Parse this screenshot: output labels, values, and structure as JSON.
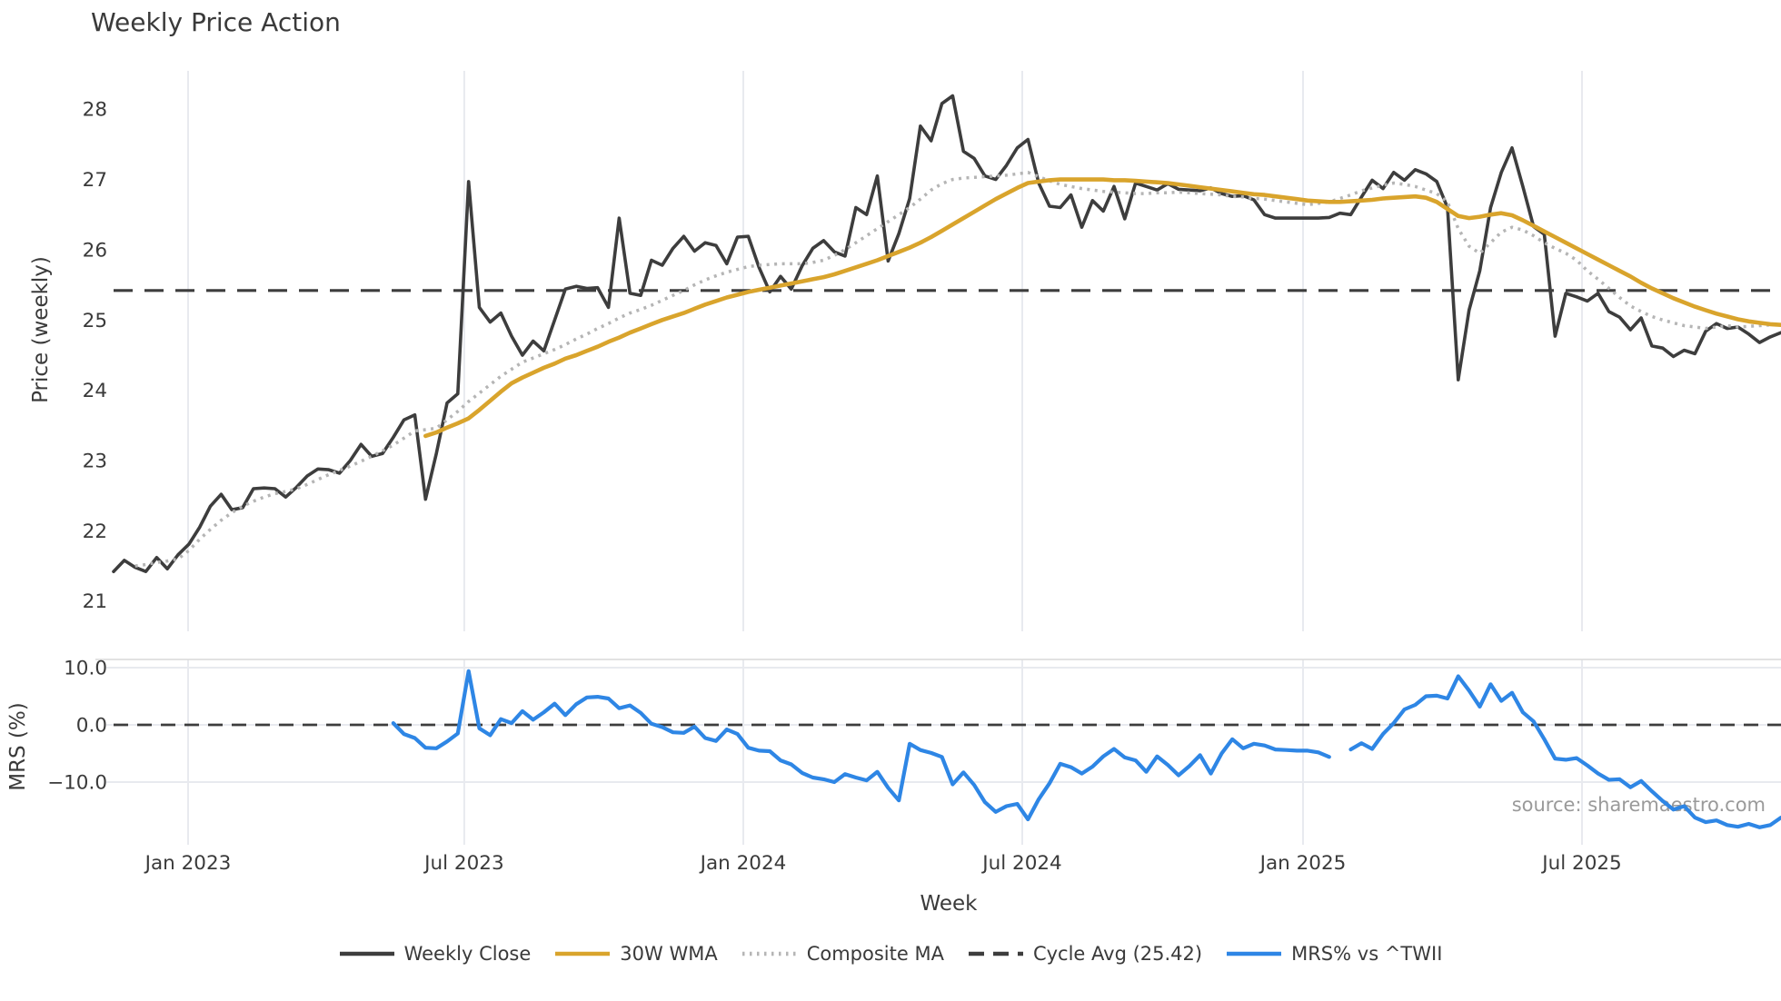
{
  "title": "Weekly Price Action",
  "xlabel": "Week",
  "source_note": "source: sharemaestro.com",
  "colors": {
    "background": "#ffffff",
    "text": "#3a3a3a",
    "grid": "#e8eaef",
    "spine": "#d9d9d9",
    "weekly_close": "#3d3d3d",
    "wma": "#d9a42c",
    "composite": "#b5b5b5",
    "cycle_avg": "#3d3d3d",
    "mrs": "#2e86e5",
    "source": "#9a9a9a"
  },
  "legend": [
    {
      "label": "Weekly Close",
      "style": "solid",
      "color": "#3d3d3d"
    },
    {
      "label": "30W WMA",
      "style": "solid",
      "color": "#d9a42c"
    },
    {
      "label": "Composite MA",
      "style": "dotted",
      "color": "#b5b5b5"
    },
    {
      "label": "Cycle Avg (25.42)",
      "style": "dashed",
      "color": "#3d3d3d"
    },
    {
      "label": "MRS% vs ^TWII",
      "style": "solid",
      "color": "#2e86e5"
    }
  ],
  "chart_data": [
    {
      "type": "line",
      "title": "Weekly Price Action",
      "ylabel": "Price (weekly)",
      "xlabel": "Week",
      "x_unit": "weekly index (Nov 2022 - Nov 2025)",
      "ylim": [
        20.57,
        28.52
      ],
      "grid": "vertical-only",
      "yticks": [
        {
          "v": 28,
          "label": "28"
        },
        {
          "v": 27,
          "label": "27"
        },
        {
          "v": 26,
          "label": "26"
        },
        {
          "v": 25,
          "label": "25"
        },
        {
          "v": 24,
          "label": "24"
        },
        {
          "v": 23,
          "label": "23"
        },
        {
          "v": 22,
          "label": "22"
        },
        {
          "v": 21,
          "label": "21"
        }
      ],
      "xticks": [
        {
          "week": 6.93,
          "label": "Jan 2023"
        },
        {
          "week": 32.6,
          "label": "Jul 2023"
        },
        {
          "week": 58.54,
          "label": "Jan 2024"
        },
        {
          "week": 84.47,
          "label": "Jul 2024"
        },
        {
          "week": 110.57,
          "label": "Jan 2025"
        },
        {
          "week": 136.5,
          "label": "Jul 2025"
        }
      ],
      "cycle_avg": 25.42,
      "series": [
        {
          "name": "Weekly Close",
          "style": "solid",
          "color": "#3d3d3d",
          "values": [
            21.42,
            21.58,
            21.48,
            21.42,
            21.62,
            21.46,
            21.66,
            21.81,
            22.05,
            22.35,
            22.52,
            22.3,
            22.33,
            22.6,
            22.61,
            22.6,
            22.48,
            22.62,
            22.78,
            22.88,
            22.87,
            22.82,
            23.0,
            23.23,
            23.06,
            23.1,
            23.33,
            23.58,
            23.65,
            22.45,
            23.1,
            23.82,
            23.95,
            26.97,
            25.18,
            24.97,
            25.1,
            24.77,
            24.5,
            24.7,
            24.56,
            25.0,
            25.44,
            25.48,
            25.45,
            25.46,
            25.18,
            26.45,
            25.38,
            25.35,
            25.85,
            25.78,
            26.02,
            26.19,
            25.98,
            26.1,
            26.06,
            25.8,
            26.18,
            26.19,
            25.75,
            25.4,
            25.62,
            25.44,
            25.77,
            26.02,
            26.13,
            25.97,
            25.91,
            26.6,
            26.5,
            27.05,
            25.84,
            26.23,
            26.73,
            27.76,
            27.55,
            28.08,
            28.19,
            27.4,
            27.3,
            27.05,
            27.0,
            27.2,
            27.45,
            27.57,
            26.95,
            26.62,
            26.6,
            26.78,
            26.32,
            26.7,
            26.55,
            26.9,
            26.44,
            26.95,
            26.9,
            26.85,
            26.94,
            26.86,
            26.85,
            26.84,
            26.88,
            26.8,
            26.76,
            26.77,
            26.71,
            26.5,
            26.45,
            26.45,
            26.45,
            26.45,
            26.45,
            26.46,
            26.52,
            26.5,
            26.75,
            26.99,
            26.87,
            27.1,
            26.99,
            27.14,
            27.08,
            26.97,
            26.6,
            24.15,
            25.14,
            25.7,
            26.6,
            27.1,
            27.45,
            26.9,
            26.33,
            26.22,
            24.77,
            25.38,
            25.33,
            25.27,
            25.38,
            25.12,
            25.04,
            24.86,
            25.03,
            24.63,
            24.6,
            24.48,
            24.57,
            24.52,
            24.84,
            24.95,
            24.88,
            24.9,
            24.8,
            24.68,
            24.76,
            24.82
          ]
        },
        {
          "name": "30W WMA",
          "style": "solid",
          "color": "#d9a42c",
          "values": [
            null,
            null,
            null,
            null,
            null,
            null,
            null,
            null,
            null,
            null,
            null,
            null,
            null,
            null,
            null,
            null,
            null,
            null,
            null,
            null,
            null,
            null,
            null,
            null,
            null,
            null,
            null,
            null,
            null,
            23.35,
            23.4,
            23.47,
            23.53,
            23.6,
            23.72,
            23.85,
            23.98,
            24.1,
            24.18,
            24.25,
            24.32,
            24.38,
            24.45,
            24.5,
            24.56,
            24.62,
            24.69,
            24.75,
            24.82,
            24.88,
            24.94,
            25.0,
            25.05,
            25.1,
            25.16,
            25.22,
            25.27,
            25.32,
            25.36,
            25.4,
            25.43,
            25.46,
            25.49,
            25.52,
            25.55,
            25.58,
            25.61,
            25.65,
            25.7,
            25.75,
            25.8,
            25.85,
            25.91,
            25.97,
            26.03,
            26.1,
            26.18,
            26.27,
            26.36,
            26.45,
            26.54,
            26.63,
            26.72,
            26.8,
            26.88,
            26.95,
            26.97,
            26.99,
            27.0,
            27.0,
            27.0,
            27.0,
            27.0,
            26.99,
            26.99,
            26.98,
            26.97,
            26.96,
            26.95,
            26.93,
            26.91,
            26.89,
            26.87,
            26.85,
            26.83,
            26.81,
            26.79,
            26.78,
            26.76,
            26.74,
            26.72,
            26.7,
            26.69,
            26.68,
            26.68,
            26.69,
            26.7,
            26.71,
            26.73,
            26.74,
            26.75,
            26.76,
            26.74,
            26.68,
            26.58,
            26.48,
            26.45,
            26.47,
            26.5,
            26.52,
            26.49,
            26.42,
            26.34,
            26.26,
            26.18,
            26.1,
            26.02,
            25.94,
            25.86,
            25.78,
            25.7,
            25.62,
            25.53,
            25.45,
            25.38,
            25.31,
            25.25,
            25.19,
            25.14,
            25.09,
            25.05,
            25.01,
            24.98,
            24.96,
            24.94,
            24.93
          ]
        },
        {
          "name": "Composite MA",
          "style": "dotted",
          "color": "#b5b5b5",
          "values": [
            null,
            null,
            21.5,
            21.52,
            21.55,
            21.57,
            21.6,
            21.72,
            21.88,
            22.02,
            22.15,
            22.26,
            22.35,
            22.42,
            22.48,
            22.53,
            22.56,
            22.6,
            22.66,
            22.73,
            22.8,
            22.86,
            22.92,
            22.99,
            23.06,
            23.14,
            23.22,
            23.32,
            23.42,
            23.44,
            23.46,
            23.58,
            23.7,
            23.84,
            23.96,
            24.08,
            24.2,
            24.3,
            24.4,
            24.46,
            24.52,
            24.58,
            24.65,
            24.73,
            24.8,
            24.88,
            24.95,
            25.03,
            25.1,
            25.15,
            25.21,
            25.28,
            25.35,
            25.42,
            25.5,
            25.57,
            25.63,
            25.68,
            25.72,
            25.76,
            25.78,
            25.79,
            25.8,
            25.8,
            25.8,
            25.82,
            25.85,
            25.92,
            26.0,
            26.1,
            26.2,
            26.3,
            26.4,
            26.5,
            26.6,
            26.72,
            26.85,
            26.94,
            27.0,
            27.02,
            27.03,
            27.04,
            27.05,
            27.06,
            27.08,
            27.1,
            27.04,
            26.98,
            26.93,
            26.9,
            26.87,
            26.85,
            26.83,
            26.82,
            26.81,
            26.8,
            26.8,
            26.81,
            26.81,
            26.82,
            26.81,
            26.8,
            26.79,
            26.78,
            26.76,
            26.75,
            26.73,
            26.72,
            26.7,
            26.68,
            26.66,
            26.64,
            26.66,
            26.68,
            26.73,
            26.78,
            26.84,
            26.88,
            26.92,
            26.95,
            26.93,
            26.9,
            26.85,
            26.8,
            26.68,
            26.3,
            26.05,
            25.95,
            26.1,
            26.25,
            26.32,
            26.28,
            26.2,
            26.1,
            26.02,
            25.95,
            25.85,
            25.7,
            25.58,
            25.45,
            25.32,
            25.2,
            25.12,
            25.05,
            25.0,
            24.96,
            24.92,
            24.9,
            24.88,
            24.9,
            24.92,
            24.9,
            24.91,
            24.92,
            24.93,
            24.95
          ]
        }
      ]
    },
    {
      "type": "line",
      "ylabel": "MRS (%)",
      "ylim": [
        -20.95,
        11.43
      ],
      "zero_line": 0,
      "yticks": [
        {
          "v": 10,
          "label": "10.0"
        },
        {
          "v": 0,
          "label": "0.0"
        },
        {
          "v": -10,
          "label": "−10.0"
        }
      ],
      "series": [
        {
          "name": "MRS% vs ^TWII",
          "style": "solid",
          "color": "#2e86e5",
          "values": [
            null,
            null,
            null,
            null,
            null,
            null,
            null,
            null,
            null,
            null,
            null,
            null,
            null,
            null,
            null,
            null,
            null,
            null,
            null,
            null,
            null,
            null,
            null,
            null,
            null,
            null,
            0.3,
            -1.6,
            -2.3,
            -4.0,
            -4.1,
            -2.9,
            -1.5,
            9.4,
            -0.6,
            -1.8,
            1.0,
            0.3,
            2.4,
            0.9,
            2.2,
            3.7,
            1.7,
            3.6,
            4.8,
            4.9,
            4.6,
            2.9,
            3.4,
            2.1,
            0.2,
            -0.4,
            -1.3,
            -1.4,
            -0.3,
            -2.3,
            -2.8,
            -0.8,
            -1.6,
            -4.0,
            -4.5,
            -4.6,
            -6.2,
            -6.9,
            -8.4,
            -9.2,
            -9.5,
            -10.0,
            -8.6,
            -9.2,
            -9.7,
            -8.2,
            -11.0,
            -13.2,
            -3.3,
            -4.4,
            -4.9,
            -5.6,
            -10.4,
            -8.3,
            -10.5,
            -13.5,
            -15.2,
            -14.2,
            -13.8,
            -16.5,
            -13.0,
            -10.2,
            -6.8,
            -7.4,
            -8.5,
            -7.3,
            -5.5,
            -4.2,
            -5.7,
            -6.2,
            -8.2,
            -5.5,
            -7.0,
            -8.8,
            -7.2,
            -5.3,
            -8.5,
            -5.0,
            -2.5,
            -4.1,
            -3.3,
            -3.6,
            -4.3,
            -4.4,
            -4.5,
            -4.5,
            -4.8,
            -5.6,
            null,
            -4.3,
            -3.2,
            -4.2,
            -1.6,
            0.3,
            2.7,
            3.5,
            5.0,
            5.1,
            4.6,
            8.5,
            6.0,
            3.2,
            7.1,
            4.2,
            5.6,
            2.2,
            0.6,
            -2.5,
            -5.9,
            -6.1,
            -5.8,
            -7.1,
            -8.5,
            -9.6,
            -9.5,
            -10.9,
            -9.8,
            -11.6,
            -13.3,
            -14.8,
            -14.2,
            -16.2,
            -17.0,
            -16.7,
            -17.5,
            -17.8,
            -17.3,
            -17.9,
            -17.5,
            -16.2
          ]
        }
      ]
    }
  ]
}
